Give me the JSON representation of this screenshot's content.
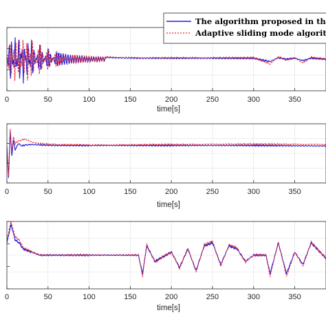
{
  "chart_data": [
    {
      "type": "line",
      "xlabel": "time[s]",
      "ylabel": "",
      "title": "",
      "xlim": [
        0,
        388
      ],
      "x_ticks": [
        0,
        50,
        100,
        150,
        200,
        250,
        300,
        350
      ],
      "ylim": [
        -0.65,
        0.65
      ],
      "grid": "on",
      "legend_placement": "top-right",
      "series": [
        {
          "name": "The algorithm proposed in this paper",
          "color": "#1f1fd8",
          "style": "solid",
          "x": [
            0,
            5,
            10,
            15,
            20,
            25,
            30,
            40,
            50,
            60,
            80,
            100,
            130,
            160,
            200,
            250,
            300,
            320,
            330,
            340,
            350,
            360,
            370,
            388
          ],
          "y": [
            0.0,
            0.5,
            -0.45,
            0.55,
            -0.5,
            0.45,
            -0.4,
            0.3,
            -0.22,
            0.15,
            0.08,
            0.05,
            0.03,
            0.02,
            0.02,
            0.02,
            0.02,
            -0.05,
            0.03,
            0.0,
            0.02,
            -0.03,
            0.02,
            0.0
          ]
        },
        {
          "name": "Adaptive sliding mode algorithm",
          "color": "#e8202a",
          "style": "dashed",
          "x": [
            0,
            5,
            10,
            15,
            20,
            25,
            30,
            40,
            50,
            60,
            80,
            100,
            130,
            160,
            200,
            250,
            300,
            320,
            330,
            340,
            350,
            360,
            370,
            388
          ],
          "y": [
            0.0,
            -0.4,
            0.55,
            -0.5,
            0.5,
            -0.55,
            0.45,
            -0.35,
            0.25,
            -0.18,
            0.1,
            0.06,
            0.04,
            0.03,
            0.03,
            0.03,
            0.03,
            -0.1,
            0.05,
            -0.02,
            0.03,
            -0.08,
            0.04,
            0.0
          ]
        }
      ]
    },
    {
      "type": "line",
      "xlabel": "time[s]",
      "ylabel": "",
      "title": "",
      "xlim": [
        0,
        388
      ],
      "x_ticks": [
        0,
        50,
        100,
        150,
        200,
        250,
        300,
        350
      ],
      "ylim": [
        -0.75,
        0.45
      ],
      "grid": "on",
      "series": [
        {
          "name": "The algorithm proposed in this paper",
          "color": "#1f1fd8",
          "style": "solid",
          "x": [
            0,
            2,
            4,
            6,
            8,
            10,
            14,
            18,
            22,
            30,
            40,
            60,
            100,
            200,
            300,
            388
          ],
          "y": [
            0.0,
            -0.65,
            0.3,
            -0.2,
            0.12,
            -0.08,
            0.05,
            0.0,
            0.02,
            0.03,
            0.02,
            0.01,
            0.01,
            0.01,
            0.01,
            0.0
          ]
        },
        {
          "name": "Adaptive sliding mode algorithm",
          "color": "#e8202a",
          "style": "dashed",
          "x": [
            0,
            2,
            4,
            6,
            8,
            10,
            14,
            18,
            22,
            30,
            40,
            60,
            100,
            200,
            300,
            388
          ],
          "y": [
            0.0,
            -0.6,
            0.35,
            -0.1,
            0.18,
            0.05,
            0.1,
            0.12,
            0.14,
            0.08,
            0.05,
            0.03,
            0.02,
            0.03,
            0.04,
            0.03
          ]
        }
      ]
    },
    {
      "type": "line",
      "xlabel": "time[s]",
      "ylabel": "",
      "title": "",
      "xlim": [
        0,
        388
      ],
      "x_ticks": [
        0,
        50,
        100,
        150,
        200,
        250,
        300,
        350
      ],
      "ylim": [
        -0.55,
        0.55
      ],
      "grid": "on",
      "series": [
        {
          "name": "The algorithm proposed in this paper",
          "color": "#1f1fd8",
          "style": "solid",
          "x": [
            0,
            5,
            10,
            15,
            20,
            30,
            40,
            60,
            100,
            160,
            165,
            170,
            180,
            200,
            210,
            220,
            230,
            240,
            250,
            260,
            270,
            280,
            290,
            300,
            315,
            320,
            330,
            340,
            350,
            360,
            370,
            388
          ],
          "y": [
            0.2,
            0.5,
            0.25,
            0.2,
            0.1,
            0.05,
            0.0,
            0.0,
            0.0,
            0.0,
            -0.3,
            0.15,
            -0.1,
            0.05,
            -0.2,
            0.1,
            -0.25,
            0.15,
            0.2,
            -0.15,
            0.15,
            0.1,
            -0.1,
            0.0,
            0.0,
            -0.3,
            0.2,
            -0.3,
            0.05,
            -0.15,
            0.2,
            -0.05
          ]
        },
        {
          "name": "Adaptive sliding mode algorithm",
          "color": "#e8202a",
          "style": "dashed",
          "x": [
            0,
            5,
            10,
            15,
            20,
            30,
            40,
            60,
            100,
            160,
            165,
            170,
            180,
            200,
            210,
            220,
            230,
            240,
            250,
            260,
            270,
            280,
            290,
            300,
            315,
            320,
            330,
            340,
            350,
            360,
            370,
            388
          ],
          "y": [
            0.25,
            0.55,
            0.3,
            0.25,
            0.12,
            0.06,
            0.0,
            0.0,
            0.0,
            0.0,
            -0.35,
            0.18,
            -0.12,
            0.06,
            -0.22,
            0.12,
            -0.28,
            0.17,
            0.23,
            -0.18,
            0.17,
            0.12,
            -0.12,
            0.0,
            0.0,
            -0.35,
            0.22,
            -0.35,
            0.05,
            -0.18,
            0.22,
            -0.06
          ]
        }
      ]
    }
  ]
}
